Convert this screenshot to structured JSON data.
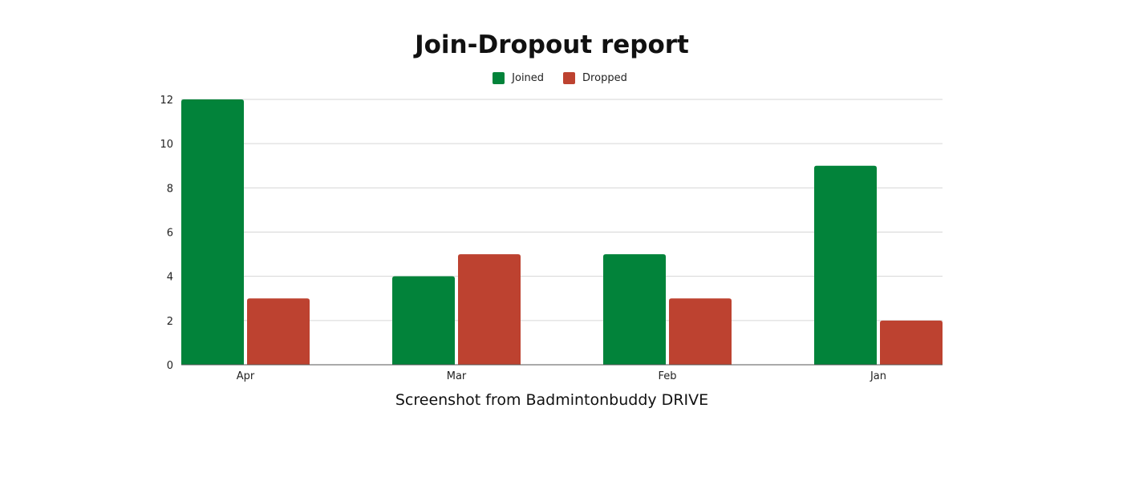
{
  "chart_data": {
    "type": "bar",
    "title": "Join-Dropout report",
    "categories": [
      "Apr",
      "Mar",
      "Feb",
      "Jan"
    ],
    "series": [
      {
        "name": "Joined",
        "color": "#02833a",
        "values": [
          12,
          4,
          5,
          9
        ]
      },
      {
        "name": "Dropped",
        "color": "#bd4230",
        "values": [
          3,
          5,
          3,
          2
        ]
      }
    ],
    "yticks": [
      "0",
      "2",
      "4",
      "6",
      "8",
      "10",
      "12"
    ],
    "ylim": [
      0,
      12
    ],
    "grid": true,
    "legend_position": "top-center",
    "xlabel": "",
    "ylabel": ""
  },
  "caption": "Screenshot from Badmintonbuddy DRIVE"
}
